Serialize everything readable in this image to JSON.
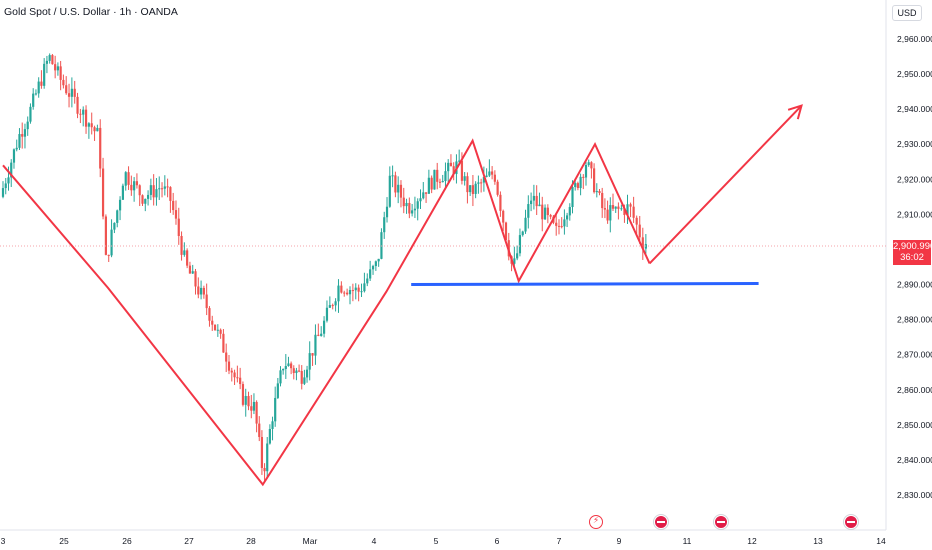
{
  "header": {
    "title": "Gold Spot / U.S. Dollar · 1h · OANDA",
    "currency": "USD"
  },
  "last_price": {
    "value": "2,900.990",
    "countdown": "36:02"
  },
  "colors": {
    "up": "#26a69a",
    "down": "#ef5350",
    "pattern": "#f23645",
    "support": "#2962ff",
    "price_line": "#f5a3aa"
  },
  "events": [
    {
      "icon": "flash-event-icon",
      "date": "9"
    },
    {
      "icon": "us-flag-icon",
      "date": "10"
    },
    {
      "icon": "us-flag-icon",
      "date": "11"
    },
    {
      "icon": "us-flag-icon",
      "date": "13"
    }
  ],
  "chart_data": {
    "type": "candlestick",
    "title": "Gold Spot / U.S. Dollar · 1h · OANDA",
    "ylim": [
      2825,
      2970
    ],
    "y_ticks": [
      2960,
      2950,
      2940,
      2930,
      2920,
      2910,
      2890,
      2880,
      2870,
      2860,
      2850,
      2840,
      2830
    ],
    "y_tick_labels": [
      "2,960.000",
      "2,950.000",
      "2,940.000",
      "2,930.000",
      "2,920.000",
      "2,910.000",
      "2,890.000",
      "2,880.000",
      "2,870.000",
      "2,860.000",
      "2,850.000",
      "2,840.000",
      "2,830.000"
    ],
    "x_ticks": [
      0,
      1,
      2,
      3,
      4,
      5,
      6,
      7,
      8,
      9,
      10,
      11,
      12,
      13,
      14
    ],
    "x_tick_labels": [
      "3",
      "25",
      "26",
      "27",
      "28",
      "Mar",
      "4",
      "5",
      "6",
      "7",
      "9",
      "11",
      "12",
      "13",
      "14"
    ],
    "price_path": [
      [
        0.0,
        2915
      ],
      [
        0.3,
        2932
      ],
      [
        0.5,
        2940
      ],
      [
        0.8,
        2955
      ],
      [
        1.0,
        2948
      ],
      [
        1.3,
        2940
      ],
      [
        1.6,
        2932
      ],
      [
        1.7,
        2896
      ],
      [
        1.9,
        2912
      ],
      [
        2.0,
        2922
      ],
      [
        2.3,
        2915
      ],
      [
        2.6,
        2918
      ],
      [
        2.75,
        2914
      ],
      [
        3.0,
        2895
      ],
      [
        3.3,
        2885
      ],
      [
        3.6,
        2872
      ],
      [
        3.9,
        2858
      ],
      [
        4.1,
        2855
      ],
      [
        4.25,
        2836
      ],
      [
        4.4,
        2852
      ],
      [
        4.6,
        2868
      ],
      [
        4.9,
        2864
      ],
      [
        5.2,
        2876
      ],
      [
        5.5,
        2890
      ],
      [
        5.8,
        2888
      ],
      [
        6.1,
        2896
      ],
      [
        6.3,
        2920
      ],
      [
        6.6,
        2912
      ],
      [
        7.0,
        2920
      ],
      [
        7.4,
        2924
      ],
      [
        7.6,
        2916
      ],
      [
        8.0,
        2922
      ],
      [
        8.3,
        2894
      ],
      [
        8.6,
        2915
      ],
      [
        9.0,
        2905
      ],
      [
        9.5,
        2925
      ],
      [
        9.8,
        2910
      ],
      [
        10.2,
        2912
      ],
      [
        10.4,
        2902
      ]
    ],
    "pattern_lines": [
      {
        "type": "polyline",
        "color": "#f23645",
        "points": [
          [
            0.0,
            2924
          ],
          [
            1.7,
            2889
          ],
          [
            4.2,
            2833
          ],
          [
            6.2,
            2888
          ],
          [
            7.6,
            2931
          ],
          [
            8.35,
            2891
          ],
          [
            9.6,
            2930
          ],
          [
            10.45,
            2896
          ]
        ]
      },
      {
        "type": "arrow",
        "color": "#f23645",
        "points": [
          [
            10.45,
            2896
          ],
          [
            12.75,
            2941
          ]
        ]
      },
      {
        "type": "line",
        "color": "#2962ff",
        "points": [
          [
            6.6,
            2890
          ],
          [
            12.1,
            2890.3
          ]
        ]
      }
    ],
    "current_price_line": 2900.99
  }
}
